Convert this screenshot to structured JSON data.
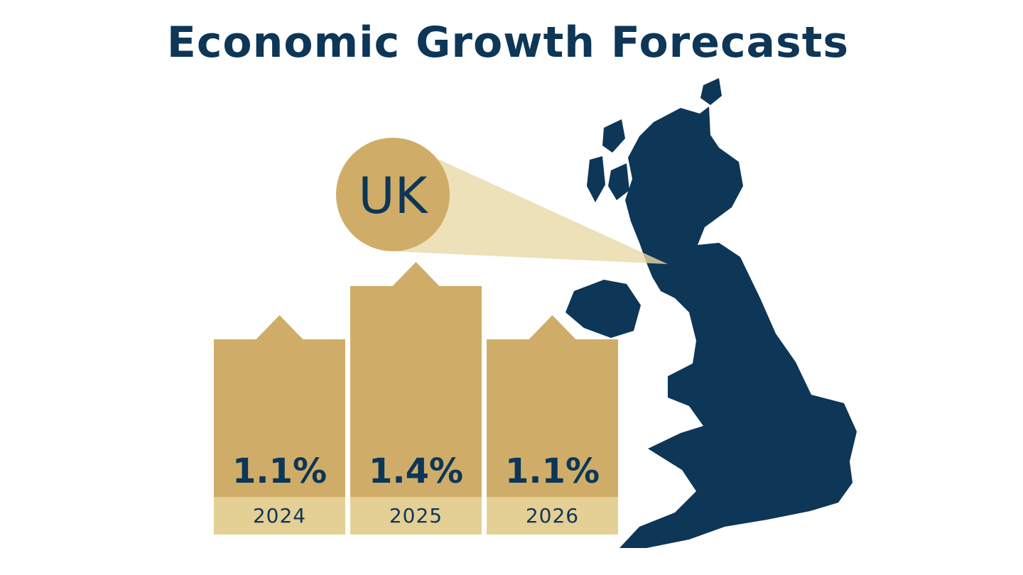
{
  "chart_data": {
    "type": "bar",
    "title": "Economic Growth Forecasts",
    "annotation": "UK",
    "categories": [
      "2024",
      "2025",
      "2026"
    ],
    "values": [
      1.1,
      1.4,
      1.1
    ],
    "value_labels": [
      "1.1%",
      "1.4%",
      "1.1%"
    ],
    "color": "#cfad68"
  }
}
